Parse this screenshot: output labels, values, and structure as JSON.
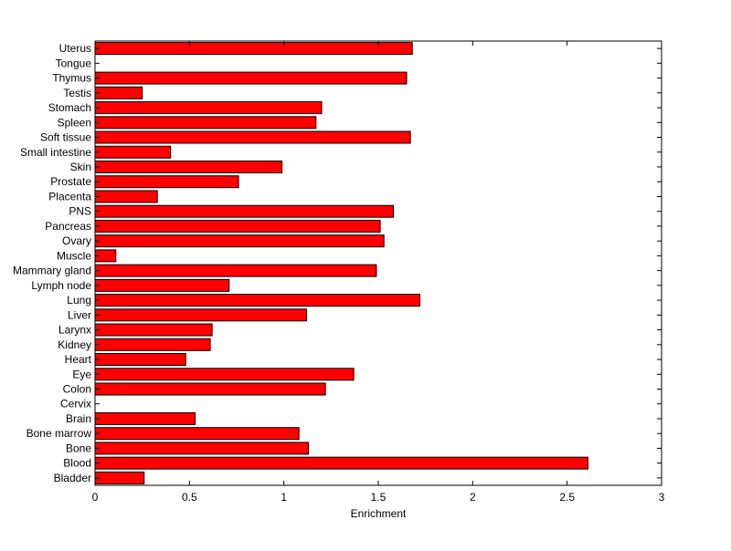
{
  "chart_data": {
    "type": "bar",
    "orientation": "horizontal",
    "xlabel": "Enrichment",
    "xlim": [
      0,
      3
    ],
    "xticks": [
      0,
      0.5,
      1,
      1.5,
      2,
      2.5,
      3
    ],
    "xtick_labels": [
      "0",
      "0.5",
      "1",
      "1.5",
      "2",
      "2.5",
      "3"
    ],
    "grid": false,
    "bar_color": "#ff0000",
    "edge_color": "#000000",
    "categories": [
      "Bladder",
      "Blood",
      "Bone",
      "Bone marrow",
      "Brain",
      "Cervix",
      "Colon",
      "Eye",
      "Heart",
      "Kidney",
      "Larynx",
      "Liver",
      "Lung",
      "Lymph node",
      "Mammary gland",
      "Muscle",
      "Ovary",
      "Pancreas",
      "PNS",
      "Placenta",
      "Prostate",
      "Skin",
      "Small intestine",
      "Soft tissue",
      "Spleen",
      "Stomach",
      "Testis",
      "Thymus",
      "Tongue",
      "Uterus"
    ],
    "values": [
      0.26,
      2.61,
      1.13,
      1.08,
      0.53,
      0.0,
      1.22,
      1.37,
      0.48,
      0.61,
      0.62,
      1.12,
      1.72,
      0.71,
      1.49,
      0.11,
      1.53,
      1.51,
      1.58,
      0.33,
      0.76,
      0.99,
      0.4,
      1.67,
      1.17,
      1.2,
      0.25,
      1.65,
      0.0,
      1.68
    ]
  }
}
